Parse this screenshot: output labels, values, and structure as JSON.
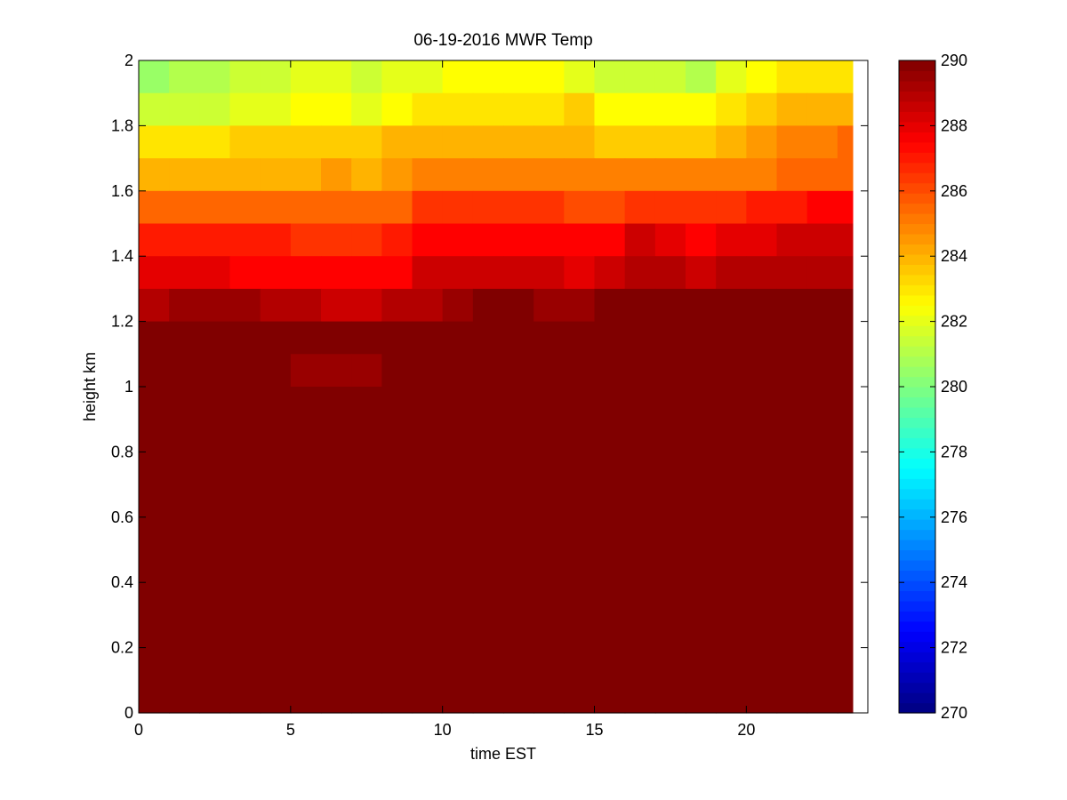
{
  "chart_data": {
    "type": "heatmap",
    "title": "06-19-2016 MWR Temp",
    "xlabel": "time EST",
    "ylabel": "height km",
    "xlim": [
      0,
      24
    ],
    "ylim": [
      0,
      2
    ],
    "x_ticks": [
      0,
      5,
      10,
      15,
      20
    ],
    "y_ticks": [
      0,
      0.2,
      0.4,
      0.6,
      0.8,
      1,
      1.2,
      1.4,
      1.6,
      1.8,
      2
    ],
    "colormap": "jet",
    "clim": [
      270,
      290
    ],
    "colorbar_ticks": [
      270,
      272,
      274,
      276,
      278,
      280,
      282,
      284,
      286,
      288,
      290
    ],
    "legend_placement": "right",
    "grid": false,
    "x": [
      0,
      1,
      2,
      3,
      4,
      5,
      6,
      7,
      8,
      9,
      10,
      11,
      12,
      13,
      14,
      15,
      16,
      17,
      18,
      19,
      20,
      21,
      22,
      23
    ],
    "y": [
      0.05,
      0.15,
      0.25,
      0.35,
      0.45,
      0.55,
      0.65,
      0.75,
      0.85,
      0.95,
      1.05,
      1.15,
      1.25,
      1.35,
      1.45,
      1.55,
      1.65,
      1.75,
      1.85,
      1.95
    ],
    "z_rows_top": [
      [
        280.5,
        281.0,
        281.0,
        281.5,
        281.5,
        282.0,
        282.0,
        281.5,
        282.0,
        282.0,
        282.5,
        282.5,
        282.5,
        282.5,
        282.0,
        281.5,
        281.5,
        281.5,
        281.0,
        282.0,
        282.5,
        283.0,
        283.0,
        283.0
      ],
      [
        281.5,
        281.5,
        281.5,
        282.0,
        282.0,
        282.5,
        282.5,
        282.0,
        282.5,
        283.0,
        283.0,
        283.0,
        283.0,
        283.0,
        283.5,
        282.5,
        282.5,
        282.5,
        282.5,
        283.0,
        283.5,
        284.0,
        284.0,
        284.0
      ],
      [
        283.0,
        283.0,
        283.0,
        283.5,
        283.5,
        283.5,
        283.5,
        283.5,
        284.0,
        284.0,
        284.0,
        284.0,
        284.0,
        284.0,
        284.0,
        283.5,
        283.5,
        283.5,
        283.5,
        284.0,
        284.5,
        285.0,
        285.0,
        285.5
      ],
      [
        284.0,
        284.0,
        284.0,
        284.0,
        284.0,
        284.0,
        284.5,
        284.0,
        284.5,
        285.0,
        285.0,
        285.0,
        285.0,
        285.0,
        285.0,
        285.0,
        285.0,
        285.0,
        285.0,
        285.0,
        285.0,
        285.5,
        285.5,
        285.5
      ],
      [
        285.5,
        285.5,
        285.5,
        285.5,
        285.5,
        285.5,
        285.5,
        285.5,
        285.5,
        286.5,
        286.5,
        286.5,
        286.5,
        286.5,
        286.0,
        286.0,
        286.5,
        286.5,
        286.5,
        286.5,
        287.0,
        287.0,
        287.5,
        287.5
      ],
      [
        287.0,
        287.0,
        287.0,
        287.0,
        287.0,
        286.5,
        286.5,
        286.5,
        287.0,
        287.5,
        287.5,
        287.5,
        287.5,
        287.5,
        287.5,
        287.5,
        288.5,
        288.0,
        287.5,
        288.0,
        288.0,
        288.5,
        288.5,
        288.5
      ],
      [
        288.0,
        288.0,
        288.0,
        287.5,
        287.5,
        287.5,
        287.5,
        287.5,
        287.5,
        288.5,
        288.5,
        288.5,
        288.5,
        288.5,
        288.0,
        288.5,
        289.0,
        289.0,
        288.5,
        289.0,
        289.0,
        289.0,
        289.0,
        289.0
      ],
      [
        289.0,
        289.5,
        289.5,
        289.5,
        289.0,
        289.0,
        288.5,
        288.5,
        289.0,
        289.0,
        289.5,
        290.0,
        290.0,
        289.5,
        289.5,
        290.0,
        290.0,
        290.0,
        290.0,
        290.0,
        290.0,
        290.0,
        290.0,
        290.0
      ],
      [
        290.0,
        290.0,
        290.0,
        290.0,
        290.0,
        290.0,
        290.0,
        290.0,
        290.0,
        290.0,
        290.0,
        290.0,
        290.0,
        290.0,
        290.0,
        290.0,
        290.0,
        290.0,
        290.0,
        290.0,
        290.0,
        290.0,
        290.0,
        290.0
      ],
      [
        290.0,
        290.0,
        290.0,
        290.0,
        290.0,
        289.5,
        289.5,
        289.5,
        290.0,
        290.0,
        290.0,
        290.0,
        290.0,
        290.0,
        290.0,
        290.0,
        290.0,
        290.0,
        290.0,
        290.0,
        290.0,
        290.0,
        290.0,
        290.0
      ],
      [
        290.0,
        290.0,
        290.0,
        290.0,
        290.0,
        290.0,
        290.0,
        290.0,
        290.0,
        290.0,
        290.0,
        290.0,
        290.0,
        290.0,
        290.0,
        290.0,
        290.0,
        290.0,
        290.0,
        290.0,
        290.0,
        290.0,
        290.0,
        290.0
      ],
      [
        290.0,
        290.0,
        290.0,
        290.0,
        290.0,
        290.0,
        290.0,
        290.0,
        290.0,
        290.0,
        290.0,
        290.0,
        290.0,
        290.0,
        290.0,
        290.0,
        290.0,
        290.0,
        290.0,
        290.0,
        290.0,
        290.0,
        290.0,
        290.0
      ],
      [
        290.0,
        290.0,
        290.0,
        290.0,
        290.0,
        290.0,
        290.0,
        290.0,
        290.0,
        290.0,
        290.0,
        290.0,
        290.0,
        290.0,
        290.0,
        290.0,
        290.0,
        290.0,
        290.0,
        290.0,
        290.0,
        290.0,
        290.0,
        290.0
      ],
      [
        290.0,
        290.0,
        290.0,
        290.0,
        290.0,
        290.0,
        290.0,
        290.0,
        290.0,
        290.0,
        290.0,
        290.0,
        290.0,
        290.0,
        290.0,
        290.0,
        290.0,
        290.0,
        290.0,
        290.0,
        290.0,
        290.0,
        290.0,
        290.0
      ],
      [
        290.0,
        290.0,
        290.0,
        290.0,
        290.0,
        290.0,
        290.0,
        290.0,
        290.0,
        290.0,
        290.0,
        290.0,
        290.0,
        290.0,
        290.0,
        290.0,
        290.0,
        290.0,
        290.0,
        290.0,
        290.0,
        290.0,
        290.0,
        290.0
      ],
      [
        290.0,
        290.0,
        290.0,
        290.0,
        290.0,
        290.0,
        290.0,
        290.0,
        290.0,
        290.0,
        290.0,
        290.0,
        290.0,
        290.0,
        290.0,
        290.0,
        290.0,
        290.0,
        290.0,
        290.0,
        290.0,
        290.0,
        290.0,
        290.0
      ],
      [
        290.0,
        290.0,
        290.0,
        290.0,
        290.0,
        290.0,
        290.0,
        290.0,
        290.0,
        290.0,
        290.0,
        290.0,
        290.0,
        290.0,
        290.0,
        290.0,
        290.0,
        290.0,
        290.0,
        290.0,
        290.0,
        290.0,
        290.0,
        290.0
      ],
      [
        290.0,
        290.0,
        290.0,
        290.0,
        290.0,
        290.0,
        290.0,
        290.0,
        290.0,
        290.0,
        290.0,
        290.0,
        290.0,
        290.0,
        290.0,
        290.0,
        290.0,
        290.0,
        290.0,
        290.0,
        290.0,
        290.0,
        290.0,
        290.0
      ],
      [
        290.0,
        290.0,
        290.0,
        290.0,
        290.0,
        290.0,
        290.0,
        290.0,
        290.0,
        290.0,
        290.0,
        290.0,
        290.0,
        290.0,
        290.0,
        290.0,
        290.0,
        290.0,
        290.0,
        290.0,
        290.0,
        290.0,
        290.0,
        290.0
      ],
      [
        290.0,
        290.0,
        290.0,
        290.0,
        290.0,
        290.0,
        290.0,
        290.0,
        290.0,
        290.0,
        290.0,
        290.0,
        290.0,
        290.0,
        290.0,
        290.0,
        290.0,
        290.0,
        290.0,
        290.0,
        290.0,
        290.0,
        290.0,
        290.0
      ]
    ]
  }
}
